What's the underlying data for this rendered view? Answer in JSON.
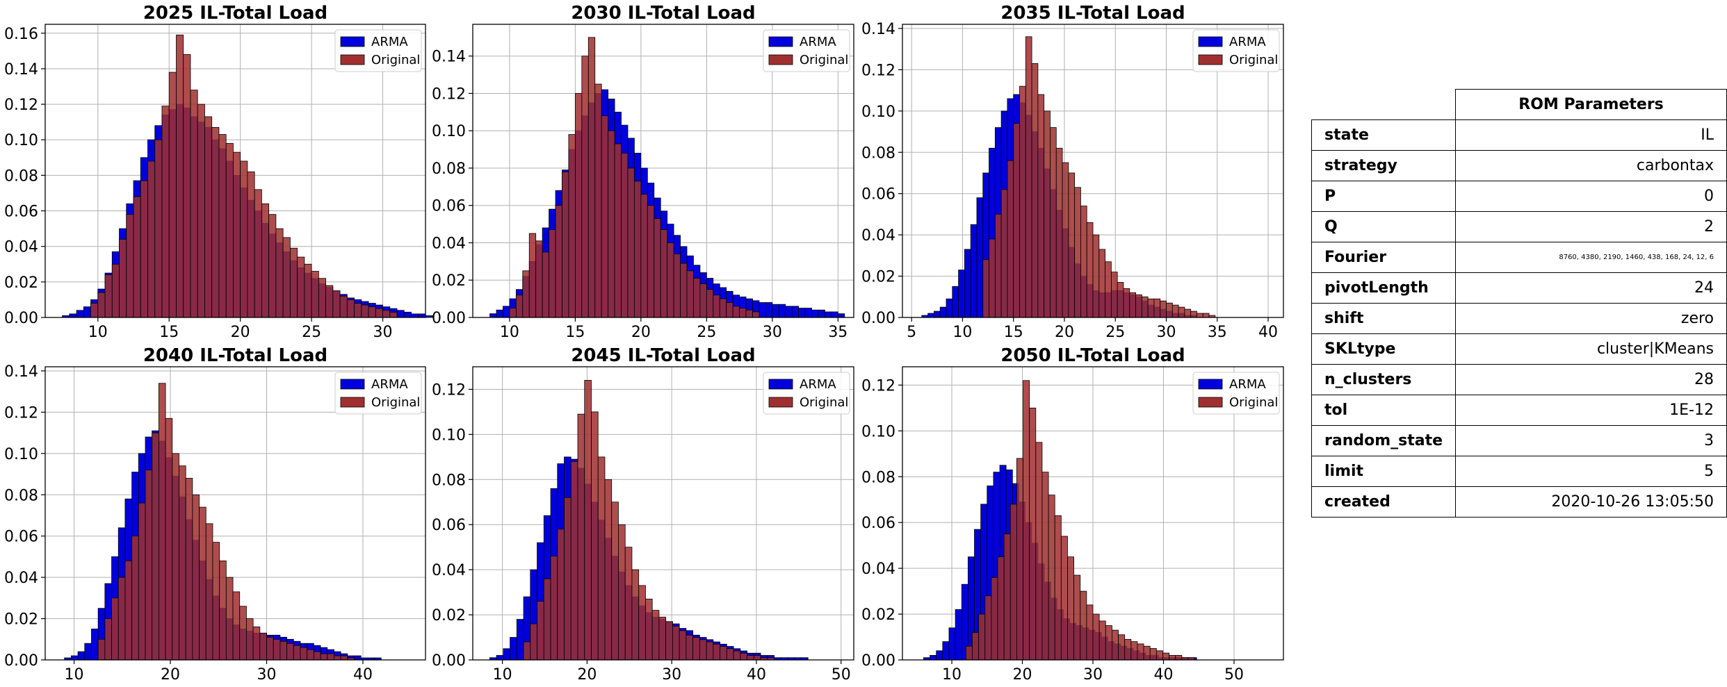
{
  "colors": {
    "arma": "#0000dd",
    "original": "#a03030",
    "overlap": "#600040"
  },
  "legend": [
    "ARMA",
    "Original"
  ],
  "table": {
    "header": "ROM Parameters",
    "rows": [
      {
        "key": "state",
        "value": "IL"
      },
      {
        "key": "strategy",
        "value": "carbontax"
      },
      {
        "key": "P",
        "value": "0"
      },
      {
        "key": "Q",
        "value": "2"
      },
      {
        "key": "Fourier",
        "value": "8760, 4380, 2190, 1460, 438, 168, 24, 12, 6"
      },
      {
        "key": "pivotLength",
        "value": "24"
      },
      {
        "key": "shift",
        "value": "zero"
      },
      {
        "key": "SKLtype",
        "value": "cluster|KMeans"
      },
      {
        "key": "n_clusters",
        "value": "28"
      },
      {
        "key": "tol",
        "value": "1E-12"
      },
      {
        "key": "random_state",
        "value": "3"
      },
      {
        "key": "limit",
        "value": "5"
      },
      {
        "key": "created",
        "value": "2020-10-26 13:05:50"
      }
    ]
  },
  "chart_data": [
    {
      "type": "bar",
      "title": "2025 IL-Total Load",
      "xlim": [
        6.3,
        33
      ],
      "ylim": [
        0,
        0.165
      ],
      "xticks": [
        10,
        15,
        20,
        25,
        30
      ],
      "yticks": [
        "0.00",
        "0.02",
        "0.04",
        "0.06",
        "0.08",
        "0.10",
        "0.12",
        "0.14",
        "0.16"
      ],
      "series": [
        {
          "name": "ARMA",
          "x_start": 7.5,
          "bin_width": 0.5,
          "values": [
            0.001,
            0.002,
            0.004,
            0.006,
            0.01,
            0.016,
            0.025,
            0.037,
            0.05,
            0.064,
            0.077,
            0.09,
            0.1,
            0.108,
            0.114,
            0.117,
            0.12,
            0.118,
            0.113,
            0.11,
            0.107,
            0.1,
            0.095,
            0.088,
            0.08,
            0.073,
            0.066,
            0.06,
            0.053,
            0.047,
            0.042,
            0.037,
            0.032,
            0.028,
            0.025,
            0.022,
            0.019,
            0.017,
            0.015,
            0.013,
            0.011,
            0.01,
            0.009,
            0.008,
            0.007,
            0.006,
            0.005,
            0.004,
            0.003,
            0.002,
            0.002,
            0.001
          ]
        },
        {
          "name": "Original",
          "x_start": 9.5,
          "bin_width": 0.5,
          "values": [
            0.008,
            0.014,
            0.024,
            0.03,
            0.044,
            0.058,
            0.068,
            0.077,
            0.088,
            0.1,
            0.119,
            0.138,
            0.159,
            0.148,
            0.128,
            0.12,
            0.113,
            0.107,
            0.103,
            0.098,
            0.093,
            0.088,
            0.082,
            0.072,
            0.064,
            0.058,
            0.05,
            0.045,
            0.039,
            0.034,
            0.03,
            0.026,
            0.022,
            0.018,
            0.015,
            0.012,
            0.01,
            0.008,
            0.007,
            0.006,
            0.005,
            0.004,
            0.003
          ]
        }
      ]
    },
    {
      "type": "bar",
      "title": "2030 IL-Total Load",
      "xlim": [
        7.2,
        36.2
      ],
      "ylim": [
        0,
        0.157
      ],
      "xticks": [
        10,
        15,
        20,
        25,
        30,
        35
      ],
      "yticks": [
        "0.00",
        "0.02",
        "0.04",
        "0.06",
        "0.08",
        "0.10",
        "0.12",
        "0.14"
      ],
      "series": [
        {
          "name": "ARMA",
          "x_start": 8.5,
          "bin_width": 0.5,
          "values": [
            0.002,
            0.004,
            0.006,
            0.01,
            0.015,
            0.022,
            0.03,
            0.039,
            0.048,
            0.058,
            0.068,
            0.079,
            0.09,
            0.1,
            0.108,
            0.115,
            0.12,
            0.122,
            0.117,
            0.11,
            0.103,
            0.096,
            0.088,
            0.08,
            0.072,
            0.064,
            0.057,
            0.05,
            0.044,
            0.038,
            0.033,
            0.028,
            0.024,
            0.021,
            0.018,
            0.016,
            0.014,
            0.012,
            0.011,
            0.01,
            0.009,
            0.008,
            0.008,
            0.007,
            0.007,
            0.006,
            0.006,
            0.005,
            0.005,
            0.004,
            0.004,
            0.003,
            0.003,
            0.002
          ]
        },
        {
          "name": "Original",
          "x_start": 10.0,
          "bin_width": 0.5,
          "values": [
            0.005,
            0.012,
            0.025,
            0.045,
            0.041,
            0.035,
            0.047,
            0.06,
            0.078,
            0.098,
            0.12,
            0.14,
            0.15,
            0.125,
            0.108,
            0.1,
            0.093,
            0.088,
            0.08,
            0.073,
            0.066,
            0.06,
            0.053,
            0.047,
            0.04,
            0.034,
            0.029,
            0.025,
            0.021,
            0.018,
            0.015,
            0.012,
            0.01,
            0.008,
            0.006,
            0.005,
            0.004,
            0.003
          ]
        }
      ]
    },
    {
      "type": "bar",
      "title": "2035 IL-Total Load",
      "xlim": [
        4.1,
        41.5
      ],
      "ylim": [
        0,
        0.142
      ],
      "xticks": [
        5,
        10,
        15,
        20,
        25,
        30,
        35,
        40
      ],
      "yticks": [
        "0.00",
        "0.02",
        "0.04",
        "0.06",
        "0.08",
        "0.10",
        "0.12",
        "0.14"
      ],
      "series": [
        {
          "name": "ARMA",
          "x_start": 6.0,
          "bin_width": 0.6,
          "values": [
            0.001,
            0.002,
            0.003,
            0.005,
            0.009,
            0.015,
            0.023,
            0.033,
            0.045,
            0.058,
            0.07,
            0.082,
            0.092,
            0.1,
            0.106,
            0.108,
            0.104,
            0.098,
            0.09,
            0.082,
            0.072,
            0.062,
            0.052,
            0.043,
            0.034,
            0.026,
            0.02,
            0.016,
            0.013,
            0.012,
            0.012,
            0.013,
            0.013,
            0.012,
            0.011,
            0.01,
            0.008,
            0.006,
            0.005,
            0.004,
            0.003,
            0.002,
            0.002,
            0.001,
            0.001
          ]
        },
        {
          "name": "Original",
          "x_start": 12.0,
          "bin_width": 0.6,
          "values": [
            0.028,
            0.038,
            0.05,
            0.062,
            0.076,
            0.094,
            0.112,
            0.136,
            0.123,
            0.108,
            0.1,
            0.092,
            0.082,
            0.075,
            0.07,
            0.063,
            0.054,
            0.046,
            0.04,
            0.033,
            0.027,
            0.022,
            0.017,
            0.014,
            0.012,
            0.011,
            0.01,
            0.009,
            0.009,
            0.008,
            0.007,
            0.006,
            0.005,
            0.004,
            0.003,
            0.002,
            0.002,
            0.001
          ]
        }
      ]
    },
    {
      "type": "bar",
      "title": "2040 IL-Total Load",
      "xlim": [
        7,
        46.5
      ],
      "ylim": [
        0,
        0.142
      ],
      "xticks": [
        10,
        20,
        30,
        40
      ],
      "yticks": [
        "0.00",
        "0.02",
        "0.04",
        "0.06",
        "0.08",
        "0.10",
        "0.12",
        "0.14"
      ],
      "series": [
        {
          "name": "ARMA",
          "x_start": 9.0,
          "bin_width": 0.7,
          "values": [
            0.001,
            0.002,
            0.004,
            0.008,
            0.015,
            0.025,
            0.037,
            0.05,
            0.064,
            0.078,
            0.091,
            0.1,
            0.108,
            0.111,
            0.106,
            0.098,
            0.089,
            0.079,
            0.068,
            0.058,
            0.048,
            0.039,
            0.031,
            0.025,
            0.02,
            0.017,
            0.015,
            0.014,
            0.013,
            0.013,
            0.012,
            0.012,
            0.011,
            0.01,
            0.009,
            0.008,
            0.008,
            0.007,
            0.006,
            0.005,
            0.004,
            0.003,
            0.002,
            0.002,
            0.001,
            0.001,
            0.001
          ]
        },
        {
          "name": "Original",
          "x_start": 12.5,
          "bin_width": 0.7,
          "values": [
            0.01,
            0.02,
            0.03,
            0.04,
            0.048,
            0.06,
            0.076,
            0.092,
            0.11,
            0.134,
            0.117,
            0.1,
            0.094,
            0.088,
            0.08,
            0.074,
            0.066,
            0.057,
            0.048,
            0.04,
            0.033,
            0.026,
            0.02,
            0.016,
            0.013,
            0.011,
            0.01,
            0.009,
            0.008,
            0.007,
            0.006,
            0.005,
            0.004,
            0.003,
            0.003,
            0.002,
            0.002,
            0.001
          ]
        }
      ]
    },
    {
      "type": "bar",
      "title": "2045 IL-Total Load",
      "xlim": [
        6.5,
        51.5
      ],
      "ylim": [
        0,
        0.13
      ],
      "xticks": [
        10,
        20,
        30,
        40,
        50
      ],
      "yticks": [
        "0.00",
        "0.02",
        "0.04",
        "0.06",
        "0.08",
        "0.10",
        "0.12"
      ],
      "series": [
        {
          "name": "ARMA",
          "x_start": 8.5,
          "bin_width": 0.8,
          "values": [
            0.001,
            0.002,
            0.005,
            0.01,
            0.018,
            0.028,
            0.04,
            0.052,
            0.064,
            0.076,
            0.087,
            0.09,
            0.089,
            0.085,
            0.078,
            0.07,
            0.062,
            0.054,
            0.046,
            0.039,
            0.033,
            0.028,
            0.024,
            0.021,
            0.019,
            0.018,
            0.017,
            0.016,
            0.014,
            0.013,
            0.011,
            0.01,
            0.009,
            0.008,
            0.007,
            0.006,
            0.005,
            0.004,
            0.003,
            0.003,
            0.002,
            0.002,
            0.001,
            0.001,
            0.001,
            0.001,
            0.001
          ]
        },
        {
          "name": "Original",
          "x_start": 12.5,
          "bin_width": 0.8,
          "values": [
            0.008,
            0.016,
            0.026,
            0.036,
            0.046,
            0.058,
            0.072,
            0.088,
            0.109,
            0.124,
            0.11,
            0.09,
            0.08,
            0.07,
            0.06,
            0.05,
            0.04,
            0.033,
            0.027,
            0.022,
            0.019,
            0.017,
            0.015,
            0.013,
            0.011,
            0.01,
            0.009,
            0.008,
            0.007,
            0.006,
            0.005,
            0.004,
            0.003,
            0.002,
            0.002,
            0.001,
            0.001
          ]
        }
      ]
    },
    {
      "type": "bar",
      "title": "2050 IL-Total Load",
      "xlim": [
        3,
        57
      ],
      "ylim": [
        0,
        0.128
      ],
      "xticks": [
        10,
        20,
        30,
        40,
        50
      ],
      "yticks": [
        "0.00",
        "0.02",
        "0.04",
        "0.06",
        "0.08",
        "0.10",
        "0.12"
      ],
      "series": [
        {
          "name": "ARMA",
          "x_start": 6.0,
          "bin_width": 0.9,
          "values": [
            0.001,
            0.002,
            0.004,
            0.008,
            0.014,
            0.022,
            0.033,
            0.045,
            0.057,
            0.068,
            0.076,
            0.082,
            0.085,
            0.083,
            0.077,
            0.069,
            0.06,
            0.051,
            0.042,
            0.034,
            0.027,
            0.022,
            0.018,
            0.016,
            0.015,
            0.014,
            0.013,
            0.012,
            0.01,
            0.008,
            0.007,
            0.006,
            0.005,
            0.004,
            0.003,
            0.002,
            0.002,
            0.001,
            0.001,
            0.001,
            0.001,
            0.001,
            0.001
          ]
        },
        {
          "name": "Original",
          "x_start": 12.0,
          "bin_width": 0.9,
          "values": [
            0.006,
            0.012,
            0.02,
            0.028,
            0.036,
            0.045,
            0.055,
            0.068,
            0.088,
            0.122,
            0.11,
            0.095,
            0.082,
            0.072,
            0.063,
            0.054,
            0.045,
            0.037,
            0.03,
            0.024,
            0.02,
            0.017,
            0.015,
            0.013,
            0.011,
            0.009,
            0.008,
            0.007,
            0.006,
            0.005,
            0.004,
            0.003,
            0.002,
            0.002,
            0.001,
            0.001
          ]
        }
      ]
    }
  ]
}
